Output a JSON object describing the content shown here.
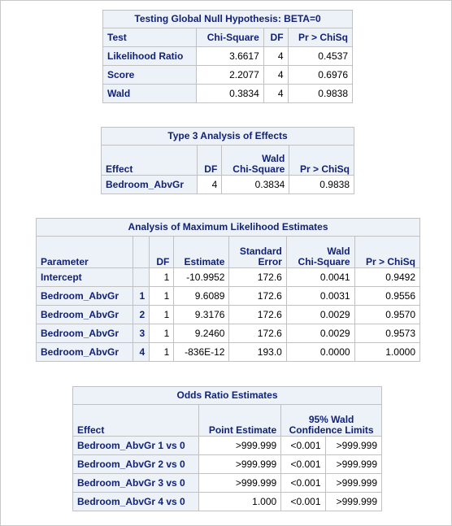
{
  "t1": {
    "title": "Testing Global Null Hypothesis: BETA=0",
    "headers": [
      "Test",
      "Chi-Square",
      "DF",
      "Pr > ChiSq"
    ],
    "rows": [
      [
        "Likelihood Ratio",
        "3.6617",
        "4",
        "0.4537"
      ],
      [
        "Score",
        "2.2077",
        "4",
        "0.6976"
      ],
      [
        "Wald",
        "0.3834",
        "4",
        "0.9838"
      ]
    ]
  },
  "t2": {
    "title": "Type 3 Analysis of Effects",
    "headers": [
      "Effect",
      "DF",
      "Wald",
      "Chi-Square",
      "Pr > ChiSq"
    ],
    "rows": [
      [
        "Bedroom_AbvGr",
        "4",
        "0.3834",
        "0.9838"
      ]
    ]
  },
  "t3": {
    "title": "Analysis of Maximum Likelihood Estimates",
    "headers": [
      "Parameter",
      "",
      "DF",
      "Estimate",
      "Standard",
      "Error",
      "Wald",
      "Chi-Square",
      "Pr > ChiSq"
    ],
    "rows": [
      [
        "Intercept",
        "",
        "1",
        "-10.9952",
        "172.6",
        "0.0041",
        "0.9492"
      ],
      [
        "Bedroom_AbvGr",
        "1",
        "1",
        "9.6089",
        "172.6",
        "0.0031",
        "0.9556"
      ],
      [
        "Bedroom_AbvGr",
        "2",
        "1",
        "9.3176",
        "172.6",
        "0.0029",
        "0.9570"
      ],
      [
        "Bedroom_AbvGr",
        "3",
        "1",
        "9.2460",
        "172.6",
        "0.0029",
        "0.9573"
      ],
      [
        "Bedroom_AbvGr",
        "4",
        "1",
        "-836E-12",
        "193.0",
        "0.0000",
        "1.0000"
      ]
    ]
  },
  "t4": {
    "title": "Odds Ratio Estimates",
    "headers": [
      "Effect",
      "Point Estimate",
      "95% Wald",
      "Confidence Limits"
    ],
    "rows": [
      [
        "Bedroom_AbvGr 1 vs 0",
        ">999.999",
        "<0.001",
        ">999.999"
      ],
      [
        "Bedroom_AbvGr 2 vs 0",
        ">999.999",
        "<0.001",
        ">999.999"
      ],
      [
        "Bedroom_AbvGr 3 vs 0",
        ">999.999",
        "<0.001",
        ">999.999"
      ],
      [
        "Bedroom_AbvGr 4 vs 0",
        "1.000",
        "<0.001",
        ">999.999"
      ]
    ]
  },
  "colors": {
    "header_bg": "#edf2f9",
    "header_text": "#112277",
    "border": "#c1c1c1"
  }
}
